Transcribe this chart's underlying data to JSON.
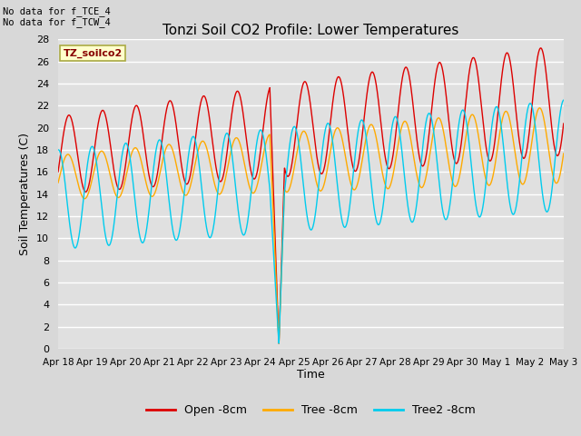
{
  "title": "Tonzi Soil CO2 Profile: Lower Temperatures",
  "ylabel": "Soil Temperatures (C)",
  "xlabel": "Time",
  "annotation1": "No data for f_TCE_4",
  "annotation2": "No data for f_TCW_4",
  "legend_label": "TZ_soilco2",
  "series_labels": [
    "Open -8cm",
    "Tree -8cm",
    "Tree2 -8cm"
  ],
  "series_colors": [
    "#dd0000",
    "#ffaa00",
    "#00ccee"
  ],
  "ylim": [
    0,
    28
  ],
  "xlim": [
    0,
    15
  ],
  "figsize": [
    6.4,
    4.8
  ],
  "dpi": 100,
  "fig_facecolor": "#d8d8d8",
  "ax_facecolor": "#e0e0e0",
  "grid_color": "#ffffff",
  "xtick_labels": [
    "Apr 18",
    "Apr 19",
    "Apr 20",
    "Apr 21",
    "Apr 22",
    "Apr 23",
    "Apr 24",
    "Apr 25",
    "Apr 26",
    "Apr 27",
    "Apr 28",
    "Apr 29",
    "Apr 30",
    "May 1",
    "May 2",
    "May 3"
  ],
  "ytick_values": [
    0,
    2,
    4,
    6,
    8,
    10,
    12,
    14,
    16,
    18,
    20,
    22,
    24,
    26,
    28
  ]
}
